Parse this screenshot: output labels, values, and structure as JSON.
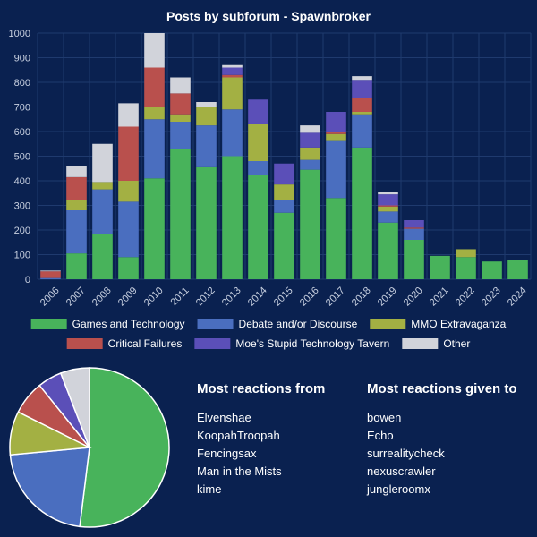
{
  "chart_data": [
    {
      "type": "bar",
      "stacked": true,
      "title": "Posts by subforum - Spawnbroker",
      "categories": [
        "2006",
        "2007",
        "2008",
        "2009",
        "2010",
        "2011",
        "2012",
        "2013",
        "2014",
        "2015",
        "2016",
        "2017",
        "2018",
        "2019",
        "2020",
        "2021",
        "2022",
        "2023",
        "2024"
      ],
      "ylim": [
        0,
        1000
      ],
      "yticks": [
        0,
        100,
        200,
        300,
        400,
        500,
        600,
        700,
        800,
        900,
        1000
      ],
      "grid": true,
      "legend": "top",
      "series": [
        {
          "name": "Games and Technology",
          "color": "#48b35b",
          "values": [
            0,
            105,
            185,
            90,
            410,
            530,
            455,
            500,
            425,
            270,
            445,
            330,
            535,
            230,
            160,
            95,
            90,
            72,
            78
          ]
        },
        {
          "name": "Debate and/or Discourse",
          "color": "#4a6ebf",
          "values": [
            5,
            175,
            180,
            225,
            240,
            110,
            170,
            190,
            55,
            50,
            40,
            235,
            135,
            45,
            45,
            0,
            0,
            0,
            0
          ]
        },
        {
          "name": "MMO Extravaganza",
          "color": "#a3b043",
          "values": [
            0,
            40,
            30,
            85,
            50,
            30,
            75,
            130,
            150,
            65,
            50,
            25,
            10,
            20,
            0,
            0,
            32,
            0,
            0
          ]
        },
        {
          "name": "Critical Failures",
          "color": "#b9504d",
          "values": [
            27,
            95,
            0,
            220,
            160,
            85,
            0,
            10,
            0,
            0,
            0,
            10,
            55,
            5,
            5,
            0,
            0,
            0,
            0
          ]
        },
        {
          "name": "Moe's Stupid Technology Tavern",
          "color": "#5b4fb8",
          "values": [
            0,
            0,
            0,
            0,
            0,
            0,
            0,
            30,
            100,
            85,
            60,
            80,
            75,
            45,
            30,
            0,
            0,
            0,
            0
          ]
        },
        {
          "name": "Other",
          "color": "#d1d3da",
          "values": [
            3,
            45,
            155,
            95,
            140,
            65,
            20,
            10,
            0,
            0,
            30,
            0,
            15,
            10,
            0,
            0,
            0,
            0,
            2
          ]
        }
      ]
    },
    {
      "type": "pie",
      "labels": [
        "Games and Technology",
        "Debate and/or Discourse",
        "MMO Extravaganza",
        "Critical Failures",
        "Moe's Stupid Technology Tavern",
        "Other"
      ],
      "values": [
        53,
        22,
        9,
        7,
        5,
        6
      ],
      "colors": [
        "#48b35b",
        "#4a6ebf",
        "#a3b043",
        "#b9504d",
        "#5b4fb8",
        "#d1d3da"
      ]
    }
  ],
  "reactions_from": {
    "heading": "Most reactions from",
    "names": [
      "Elvenshae",
      "KoopahTroopah",
      "Fencingsax",
      "Man in the Mists",
      "kime"
    ]
  },
  "reactions_to": {
    "heading": "Most reactions given to",
    "names": [
      "bowen",
      "Echo",
      "surrealitycheck",
      "nexuscrawler",
      "jungleroomx"
    ]
  }
}
